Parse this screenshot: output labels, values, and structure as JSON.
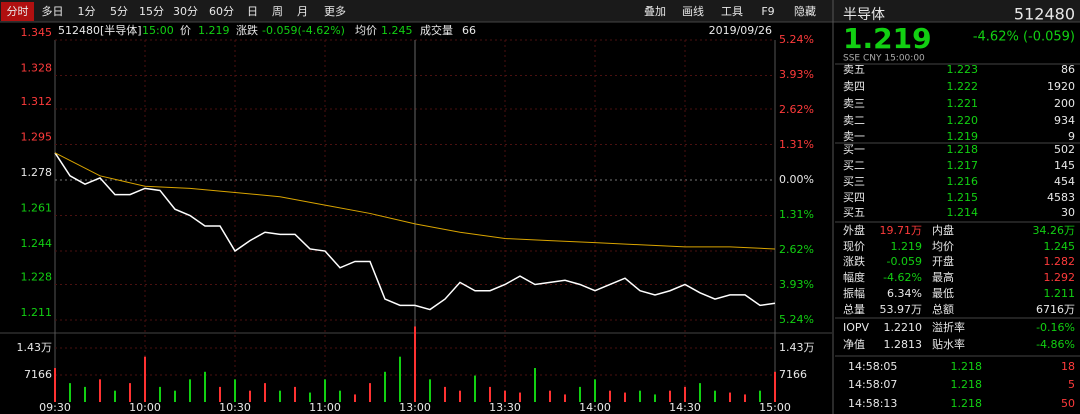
{
  "toolbar": {
    "tabs": [
      "分时",
      "多日",
      "1分",
      "5分",
      "15分",
      "30分",
      "60分",
      "日",
      "周",
      "月",
      "更多"
    ],
    "tools": [
      "叠加",
      "画线",
      "工具",
      "F9",
      "隐藏"
    ]
  },
  "info": {
    "code_name": "512480[半导体]",
    "time": "15:00",
    "price_label": "价",
    "price": "1.219",
    "change_label": "涨跌",
    "change": "-0.059(-4.62%)",
    "avg_label": "均价",
    "avg": "1.245",
    "vol_label": "成交量",
    "vol": "66",
    "date": "2019/09/26"
  },
  "quote": {
    "name": "半导体",
    "code": "512480",
    "price": "1.219",
    "change": "-4.62% (-0.059)",
    "meta": "SSE  CNY  15:00:00",
    "asks": [
      [
        "卖五",
        "1.223",
        "86"
      ],
      [
        "卖四",
        "1.222",
        "1920"
      ],
      [
        "卖三",
        "1.221",
        "200"
      ],
      [
        "卖二",
        "1.220",
        "934"
      ],
      [
        "卖一",
        "1.219",
        "9"
      ]
    ],
    "bids": [
      [
        "买一",
        "1.218",
        "502"
      ],
      [
        "买二",
        "1.217",
        "145"
      ],
      [
        "买三",
        "1.216",
        "454"
      ],
      [
        "买四",
        "1.215",
        "4583"
      ],
      [
        "买五",
        "1.214",
        "30"
      ]
    ],
    "stats": [
      [
        "外盘",
        "19.71万",
        "内盘",
        "34.26万"
      ],
      [
        "现价",
        "1.219",
        "均价",
        "1.245"
      ],
      [
        "涨跌",
        "-0.059",
        "开盘",
        "1.282"
      ],
      [
        "幅度",
        "-4.62%",
        "最高",
        "1.292"
      ],
      [
        "振幅",
        "6.34%",
        "最低",
        "1.211"
      ],
      [
        "总量",
        "53.97万",
        "总额",
        "6716万"
      ]
    ],
    "etf": [
      [
        "IOPV",
        "1.2210",
        "溢折率",
        "-0.16%"
      ],
      [
        "净值",
        "1.2813",
        "贴水率",
        "-4.86%"
      ]
    ],
    "trades": [
      [
        "14:58:05",
        "1.218",
        "18"
      ],
      [
        "14:58:07",
        "1.218",
        "5"
      ],
      [
        "14:58:13",
        "1.218",
        "50"
      ]
    ]
  },
  "chart_data": {
    "type": "line",
    "grid": true,
    "xlim": [
      0,
      240
    ],
    "xticks": [
      {
        "value": 0,
        "label": "09:30"
      },
      {
        "value": 30,
        "label": "10:00"
      },
      {
        "value": 60,
        "label": "10:30"
      },
      {
        "value": 90,
        "label": "11:00"
      },
      {
        "value": 120,
        "label": "13:00"
      },
      {
        "value": 150,
        "label": "13:30"
      },
      {
        "value": 180,
        "label": "14:00"
      },
      {
        "value": 210,
        "label": "14:30"
      },
      {
        "value": 240,
        "label": "15:00"
      }
    ],
    "ylim": [
      1.211,
      1.345
    ],
    "yticks": [
      1.211,
      1.228,
      1.244,
      1.261,
      1.278,
      1.295,
      1.312,
      1.328,
      1.345
    ],
    "y2lim": [
      -5.24,
      5.24
    ],
    "y2ticks": [
      {
        "value": -5.24,
        "label": "5.24%"
      },
      {
        "value": -3.93,
        "label": "3.93%"
      },
      {
        "value": -2.62,
        "label": "2.62%"
      },
      {
        "value": -1.31,
        "label": "1.31%"
      },
      {
        "value": 0,
        "label": "0.00%"
      },
      {
        "value": 1.31,
        "label": "1.31%"
      },
      {
        "value": 2.62,
        "label": "2.62%"
      },
      {
        "value": 3.93,
        "label": "3.93%"
      },
      {
        "value": 5.24,
        "label": "5.24%"
      }
    ],
    "series": [
      {
        "name": "价",
        "color": "#ffffff",
        "x": [
          0,
          5,
          10,
          15,
          20,
          25,
          30,
          35,
          40,
          45,
          50,
          55,
          60,
          65,
          70,
          75,
          80,
          85,
          90,
          95,
          100,
          105,
          110,
          115,
          120,
          125,
          130,
          135,
          140,
          145,
          150,
          155,
          160,
          165,
          170,
          175,
          180,
          185,
          190,
          195,
          200,
          205,
          210,
          215,
          220,
          225,
          230,
          235,
          240
        ],
        "values": [
          1.291,
          1.28,
          1.276,
          1.279,
          1.271,
          1.271,
          1.274,
          1.273,
          1.264,
          1.261,
          1.256,
          1.256,
          1.244,
          1.249,
          1.253,
          1.252,
          1.252,
          1.245,
          1.244,
          1.236,
          1.239,
          1.239,
          1.221,
          1.218,
          1.218,
          1.216,
          1.221,
          1.229,
          1.225,
          1.225,
          1.228,
          1.232,
          1.228,
          1.229,
          1.23,
          1.228,
          1.225,
          1.228,
          1.231,
          1.225,
          1.223,
          1.225,
          1.228,
          1.224,
          1.221,
          1.223,
          1.223,
          1.218,
          1.219
        ]
      },
      {
        "name": "均价",
        "color": "#d9a400",
        "x": [
          0,
          15,
          30,
          45,
          60,
          75,
          90,
          105,
          120,
          135,
          150,
          165,
          180,
          195,
          210,
          225,
          240
        ],
        "values": [
          1.291,
          1.28,
          1.275,
          1.274,
          1.272,
          1.27,
          1.266,
          1.262,
          1.257,
          1.253,
          1.25,
          1.249,
          1.248,
          1.247,
          1.246,
          1.246,
          1.245
        ]
      }
    ],
    "volume": {
      "ylim": [
        0,
        21450
      ],
      "yticks": [
        7166,
        {
          "value": 14300,
          "label": "1.43万"
        }
      ],
      "up_color": "#ff3232",
      "down_color": "#12d012",
      "x": [
        0,
        5,
        10,
        15,
        20,
        25,
        30,
        35,
        40,
        45,
        50,
        55,
        60,
        65,
        70,
        75,
        80,
        85,
        90,
        95,
        100,
        105,
        110,
        115,
        120,
        125,
        130,
        135,
        140,
        145,
        150,
        155,
        160,
        165,
        170,
        175,
        180,
        185,
        190,
        195,
        200,
        205,
        210,
        215,
        220,
        225,
        230,
        235,
        240
      ],
      "values": [
        9000,
        5000,
        4000,
        6000,
        3000,
        5000,
        12000,
        4000,
        3000,
        6000,
        8000,
        4000,
        6000,
        3000,
        5000,
        3000,
        4000,
        2500,
        6000,
        3000,
        2000,
        5000,
        8000,
        12000,
        20000,
        6000,
        4000,
        3000,
        7000,
        4000,
        3000,
        2500,
        9000,
        3000,
        2000,
        4000,
        6000,
        3000,
        2500,
        3000,
        2000,
        3000,
        4000,
        5000,
        3000,
        2500,
        2000,
        3000,
        8000
      ]
    }
  }
}
